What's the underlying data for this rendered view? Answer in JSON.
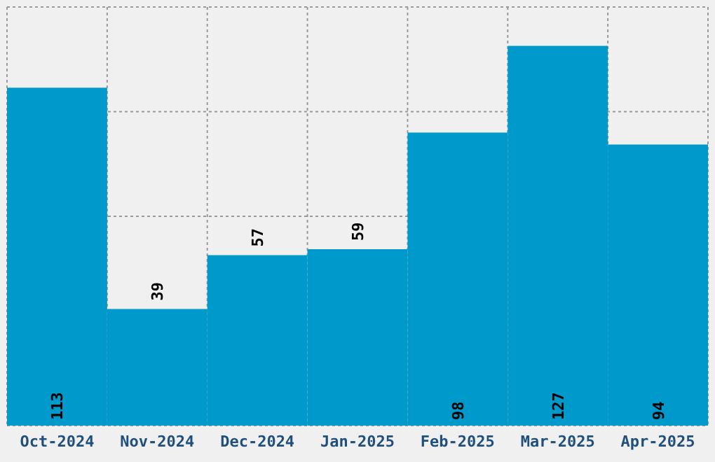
{
  "chart_data": {
    "type": "bar",
    "categories": [
      "Oct-2024",
      "Nov-2024",
      "Dec-2024",
      "Jan-2025",
      "Feb-2025",
      "Mar-2025",
      "Apr-2025"
    ],
    "values": [
      113,
      39,
      57,
      59,
      98,
      127,
      94
    ],
    "color": "#0099cc",
    "ylim": [
      0,
      140
    ],
    "yticks": [
      {
        "value": 0,
        "label": null
      },
      {
        "value": 35,
        "label": null
      },
      {
        "value": 70,
        "label": null
      },
      {
        "value": 105,
        "label": null
      },
      {
        "value": 140,
        "label": null
      }
    ],
    "grid": true,
    "data_labels": true,
    "tick_labels": "x"
  }
}
